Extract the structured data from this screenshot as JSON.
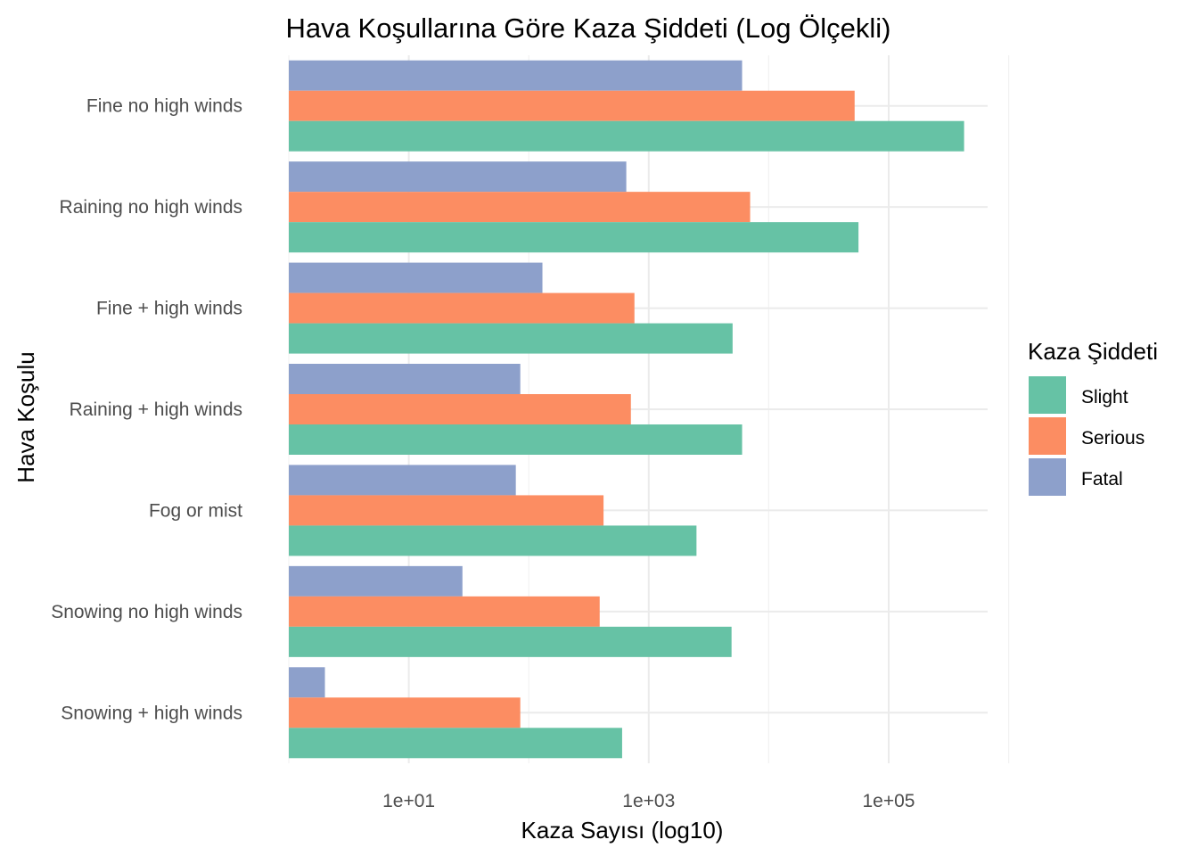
{
  "chart_data": {
    "type": "bar",
    "orientation": "horizontal",
    "title": "Hava Koşullarına Göre Kaza Şiddeti (Log Ölçekli)",
    "xlabel": "Kaza Sayısı (log10)",
    "ylabel": "Hava Koşulu",
    "x_scale": "log10",
    "xlim": [
      1,
      700000
    ],
    "x_ticks": [
      10,
      1000,
      100000
    ],
    "x_tick_labels": [
      "1e+01",
      "1e+03",
      "1e+05"
    ],
    "grid": true,
    "legend": {
      "title": "Kaza Şiddeti",
      "position": "right"
    },
    "categories": [
      "Fine no high winds",
      "Raining no high winds",
      "Fine + high winds",
      "Raining + high winds",
      "Fog or mist",
      "Snowing no high winds",
      "Snowing + high winds"
    ],
    "series": [
      {
        "name": "Slight",
        "color": "#66c2a5",
        "values": [
          425000,
          56000,
          5000,
          6000,
          2500,
          4900,
          600
        ]
      },
      {
        "name": "Serious",
        "color": "#fc8d62",
        "values": [
          52000,
          7000,
          760,
          710,
          420,
          390,
          85
        ]
      },
      {
        "name": "Fatal",
        "color": "#8da0cb",
        "values": [
          6000,
          650,
          130,
          85,
          78,
          28,
          2
        ]
      }
    ]
  }
}
